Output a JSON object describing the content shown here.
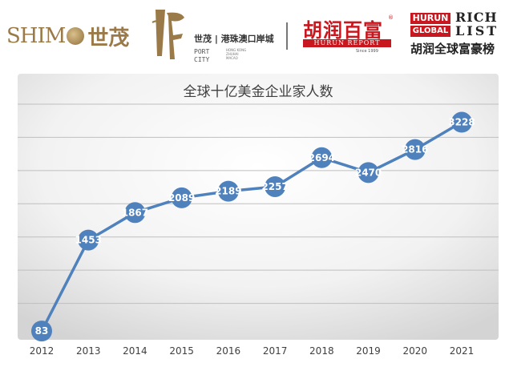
{
  "logos": {
    "shimao": {
      "latin": "SHIM",
      "cn": "世茂"
    },
    "port_city": {
      "brand": "世茂 | 港珠澳口岸城",
      "stack": [
        "PORT",
        "CITY"
      ],
      "sub": [
        "HONG KONG",
        "ZHUHAI",
        "MACAO"
      ]
    },
    "hurun_report": {
      "cn": "胡润百富",
      "en": "HURUN REPORT",
      "since": "Since 1999",
      "reg": "®"
    },
    "hurun_global": {
      "hurun": "HURUN",
      "global": "GLOBAL",
      "rich": "RICH",
      "list": "LIST",
      "cn": "胡润全球富豪榜"
    }
  },
  "colors": {
    "line": "#4f81bd",
    "marker": "#4f81bd",
    "label": "#ffffff",
    "brand_red": "#c8171e",
    "gold": "#9a7a48"
  },
  "chart_data": {
    "type": "line",
    "title": "全球十亿美金企业家人数",
    "x": [
      "2012",
      "2013",
      "2014",
      "2015",
      "2016",
      "2017",
      "2018",
      "2019",
      "2020",
      "2021"
    ],
    "series": [
      {
        "values": [
          83,
          1453,
          1867,
          2089,
          2189,
          2257,
          2694,
          2470,
          2816,
          3228
        ]
      }
    ],
    "xlabel": "",
    "ylabel": "",
    "ylim": [
      0,
      3500
    ],
    "grid": true,
    "legend": "none",
    "data_labels": true
  }
}
